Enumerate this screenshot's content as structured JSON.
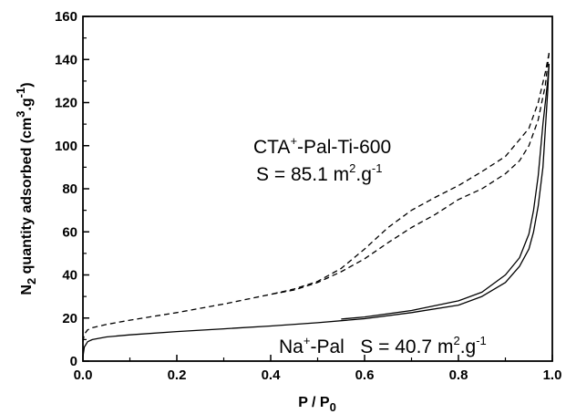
{
  "chart_data": {
    "type": "line",
    "xlabel": {
      "main": "P / P",
      "sub": "0"
    },
    "ylabel": {
      "n": "N",
      "n_sub": "2",
      "mid": " quantity adsorbed (cm",
      "sup3": "3",
      "dotg": ".g",
      "supm1": "-1",
      "close": ")"
    },
    "xlim": [
      0,
      1.0
    ],
    "ylim": [
      0,
      160
    ],
    "xticks": [
      "0.0",
      "0.2",
      "0.4",
      "0.6",
      "0.8",
      "1.0"
    ],
    "yticks": [
      "0",
      "20",
      "40",
      "60",
      "80",
      "100",
      "120",
      "140",
      "160"
    ],
    "grid": false,
    "annotations": {
      "cta_line1": {
        "base": "CTA",
        "sup": "+",
        "rest": "-Pal-Ti-600"
      },
      "cta_line2": {
        "base": "S = 85.1 m",
        "sup1": "2",
        "mid": ".g",
        "sup2": "-1"
      },
      "na": {
        "base": "Na",
        "sup": "+",
        "rest": "-Pal   S = 40.7 m",
        "sup1": "2",
        "mid": ".g",
        "sup2": "-1"
      }
    },
    "series": [
      {
        "label_ref": "annotations.cta_line1",
        "style": "dashed",
        "color": "#000000",
        "adsorption": {
          "x": [
            0.0,
            0.003,
            0.01,
            0.02,
            0.05,
            0.1,
            0.2,
            0.3,
            0.4,
            0.45,
            0.5,
            0.55,
            0.6,
            0.65,
            0.7,
            0.75,
            0.8,
            0.85,
            0.9,
            0.93,
            0.95,
            0.97,
            0.985,
            0.993
          ],
          "y": [
            9,
            12.5,
            14.5,
            15.5,
            17,
            19,
            22.5,
            26.5,
            31,
            33,
            36.5,
            41.5,
            47.5,
            55,
            62,
            68,
            75,
            80,
            87,
            93,
            100,
            112,
            128,
            143
          ]
        },
        "desorption": {
          "x": [
            0.993,
            0.985,
            0.97,
            0.95,
            0.9,
            0.85,
            0.8,
            0.75,
            0.7,
            0.65,
            0.6,
            0.55,
            0.5,
            0.45,
            0.4
          ],
          "y": [
            143,
            134,
            120,
            108,
            95,
            88,
            81.5,
            76,
            70,
            62,
            52,
            43,
            37,
            33.5,
            31
          ]
        }
      },
      {
        "label_ref": "annotations.na",
        "style": "solid",
        "color": "#000000",
        "adsorption": {
          "x": [
            0.0,
            0.003,
            0.01,
            0.02,
            0.05,
            0.1,
            0.2,
            0.3,
            0.4,
            0.5,
            0.6,
            0.7,
            0.8,
            0.85,
            0.9,
            0.93,
            0.95,
            0.96,
            0.97,
            0.98,
            0.99,
            0.993
          ],
          "y": [
            2,
            6.5,
            9,
            10,
            11.2,
            12.2,
            13.7,
            15,
            16.3,
            17.8,
            19.7,
            22.5,
            26,
            30,
            36.5,
            44,
            52,
            60,
            72,
            90,
            125,
            138
          ]
        },
        "desorption": {
          "x": [
            0.993,
            0.99,
            0.98,
            0.97,
            0.96,
            0.95,
            0.93,
            0.9,
            0.85,
            0.8,
            0.7,
            0.6,
            0.55
          ],
          "y": [
            138,
            130,
            110,
            86,
            70,
            59,
            48,
            40,
            32,
            28,
            23.5,
            20.5,
            19.5
          ]
        }
      }
    ]
  }
}
